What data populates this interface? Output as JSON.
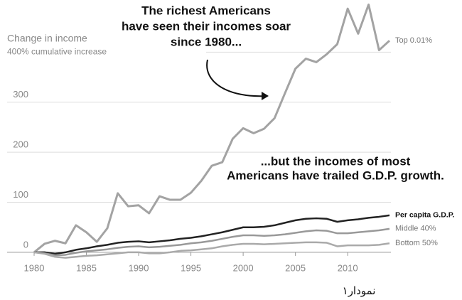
{
  "chart_data": {
    "type": "line",
    "y_axis_title": "Change in income",
    "annotations": [
      [
        "The richest Americans",
        "have seen their incomes soar",
        "since 1980..."
      ],
      [
        "...but the incomes of most",
        "Americans have trailed G.D.P. growth."
      ]
    ],
    "caption": "نمودار۱",
    "x": [
      1980,
      1981,
      1982,
      1983,
      1984,
      1985,
      1986,
      1987,
      1988,
      1989,
      1990,
      1991,
      1992,
      1993,
      1994,
      1995,
      1996,
      1997,
      1998,
      1999,
      2000,
      2001,
      2002,
      2003,
      2004,
      2005,
      2006,
      2007,
      2008,
      2009,
      2010,
      2011,
      2012,
      2013,
      2014
    ],
    "xlim": [
      1980,
      2014
    ],
    "xticks": [
      1980,
      1985,
      1990,
      1995,
      2000,
      2005,
      2010
    ],
    "ylim": [
      -20,
      500
    ],
    "yticks": [
      0,
      100,
      200,
      300,
      {
        "value": 400,
        "label": "400% cumulative increase"
      }
    ],
    "grid": true,
    "series": [
      {
        "name": "Top 0.01%",
        "color": "#a3a3a3",
        "values": [
          0,
          17,
          23,
          18,
          54,
          40,
          21,
          48,
          118,
          92,
          94,
          78,
          112,
          105,
          105,
          119,
          143,
          173,
          180,
          227,
          248,
          238,
          247,
          268,
          318,
          367,
          387,
          380,
          396,
          416,
          487,
          437,
          495,
          404,
          423
        ]
      },
      {
        "name": "Per capita G.D.P.",
        "color": "#222222",
        "values": [
          0,
          0,
          -3,
          0,
          5,
          8,
          12,
          15,
          19,
          21,
          22,
          20,
          22,
          24,
          27,
          29,
          32,
          36,
          40,
          45,
          50,
          50,
          51,
          54,
          59,
          64,
          67,
          68,
          67,
          61,
          64,
          66,
          69,
          71,
          74
        ]
      },
      {
        "name": "Middle 40%",
        "color": "#999999",
        "values": [
          0,
          -2,
          -6,
          -5,
          -1,
          2,
          4,
          6,
          9,
          11,
          12,
          10,
          11,
          13,
          15,
          18,
          20,
          23,
          27,
          31,
          34,
          34,
          33,
          34,
          36,
          39,
          42,
          44,
          43,
          38,
          38,
          40,
          42,
          44,
          47
        ]
      },
      {
        "name": "Bottom 50%",
        "color": "#aaaaaa",
        "values": [
          0,
          -3,
          -9,
          -11,
          -9,
          -7,
          -6,
          -4,
          -2,
          0,
          0,
          -2,
          -2,
          0,
          3,
          4,
          6,
          8,
          12,
          15,
          17,
          17,
          16,
          17,
          18,
          19,
          20,
          20,
          19,
          12,
          14,
          14,
          14,
          15,
          18
        ]
      }
    ]
  }
}
